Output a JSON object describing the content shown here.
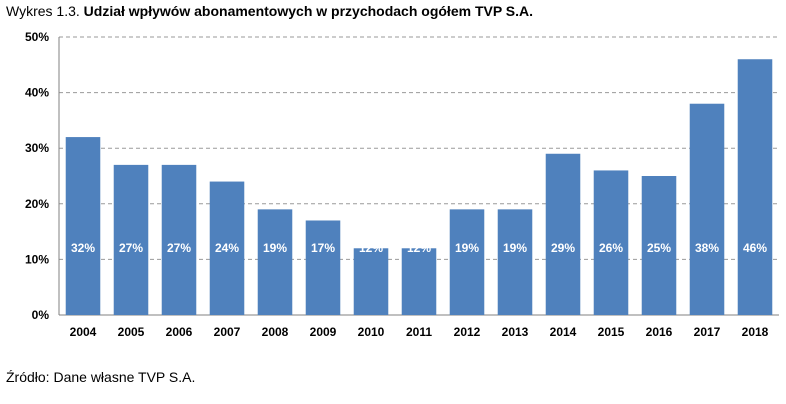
{
  "title": {
    "prefix": "Wykres 1.3.",
    "text": "Udział wpływów abonamentowych w przychodach ogółem TVP S.A."
  },
  "source": "Źródło: Dane własne TVP S.A.",
  "colors": {
    "bar": "#4f81bd",
    "label": "#ffffff"
  },
  "chart_data": {
    "type": "bar",
    "categories": [
      "2004",
      "2005",
      "2006",
      "2007",
      "2008",
      "2009",
      "2010",
      "2011",
      "2012",
      "2013",
      "2014",
      "2015",
      "2016",
      "2017",
      "2018"
    ],
    "values": [
      32,
      27,
      27,
      24,
      19,
      17,
      12,
      12,
      19,
      19,
      29,
      26,
      25,
      38,
      46
    ],
    "data_labels": [
      "32%",
      "27%",
      "27%",
      "24%",
      "19%",
      "17%",
      "12%",
      "12%",
      "19%",
      "19%",
      "29%",
      "26%",
      "25%",
      "38%",
      "46%"
    ],
    "y_ticks": [
      "0%",
      "10%",
      "20%",
      "30%",
      "40%",
      "50%"
    ],
    "ylim": [
      0,
      50
    ],
    "grid": true,
    "legend": "none"
  }
}
